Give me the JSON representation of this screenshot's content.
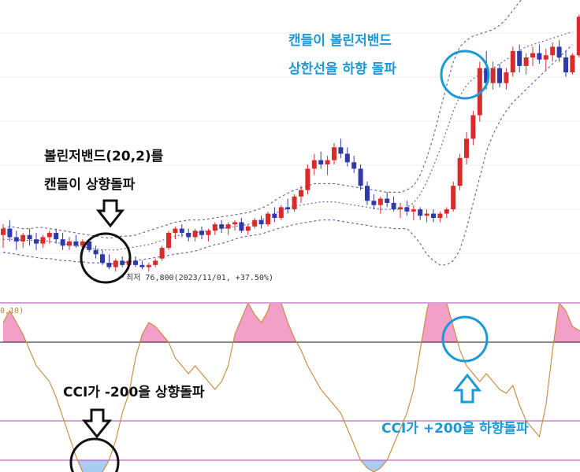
{
  "chart_data": [
    {
      "type": "candlestick",
      "overlay": "Bollinger Bands (20,2)",
      "colors": {
        "up": "#d62c2c",
        "down": "#2f3aa8",
        "band": "#6a6aaa"
      },
      "low_label": "최저 76,800(2023/11/01, +37.50%)",
      "candles": [
        {
          "o": 34,
          "h": 44,
          "l": 22,
          "c": 40
        },
        {
          "o": 40,
          "h": 48,
          "l": 28,
          "c": 32
        },
        {
          "o": 32,
          "h": 38,
          "l": 20,
          "c": 28
        },
        {
          "o": 28,
          "h": 36,
          "l": 22,
          "c": 34
        },
        {
          "o": 34,
          "h": 40,
          "l": 24,
          "c": 30
        },
        {
          "o": 30,
          "h": 36,
          "l": 20,
          "c": 26
        },
        {
          "o": 26,
          "h": 34,
          "l": 22,
          "c": 32
        },
        {
          "o": 32,
          "h": 38,
          "l": 26,
          "c": 36
        },
        {
          "o": 36,
          "h": 40,
          "l": 26,
          "c": 30
        },
        {
          "o": 30,
          "h": 36,
          "l": 20,
          "c": 24
        },
        {
          "o": 24,
          "h": 32,
          "l": 20,
          "c": 28
        },
        {
          "o": 28,
          "h": 34,
          "l": 22,
          "c": 24
        },
        {
          "o": 24,
          "h": 30,
          "l": 18,
          "c": 28
        },
        {
          "o": 28,
          "h": 30,
          "l": 18,
          "c": 20
        },
        {
          "o": 20,
          "h": 24,
          "l": 12,
          "c": 16
        },
        {
          "o": 16,
          "h": 20,
          "l": 6,
          "c": 8
        },
        {
          "o": 8,
          "h": 16,
          "l": 2,
          "c": 4
        },
        {
          "o": 4,
          "h": 12,
          "l": 0,
          "c": 10
        },
        {
          "o": 10,
          "h": 14,
          "l": 4,
          "c": 6
        },
        {
          "o": 6,
          "h": 12,
          "l": 2,
          "c": 10
        },
        {
          "o": 10,
          "h": 14,
          "l": 4,
          "c": 6
        },
        {
          "o": 6,
          "h": 10,
          "l": 2,
          "c": 4
        },
        {
          "o": 4,
          "h": 8,
          "l": 0,
          "c": 6
        },
        {
          "o": 6,
          "h": 12,
          "l": 4,
          "c": 10
        },
        {
          "o": 12,
          "h": 24,
          "l": 10,
          "c": 22
        },
        {
          "o": 22,
          "h": 38,
          "l": 20,
          "c": 36
        },
        {
          "o": 36,
          "h": 42,
          "l": 30,
          "c": 40
        },
        {
          "o": 40,
          "h": 44,
          "l": 32,
          "c": 36
        },
        {
          "o": 36,
          "h": 40,
          "l": 28,
          "c": 32
        },
        {
          "o": 32,
          "h": 40,
          "l": 28,
          "c": 38
        },
        {
          "o": 38,
          "h": 42,
          "l": 30,
          "c": 34
        },
        {
          "o": 34,
          "h": 40,
          "l": 28,
          "c": 38
        },
        {
          "o": 38,
          "h": 46,
          "l": 34,
          "c": 44
        },
        {
          "o": 44,
          "h": 48,
          "l": 36,
          "c": 40
        },
        {
          "o": 40,
          "h": 46,
          "l": 34,
          "c": 44
        },
        {
          "o": 44,
          "h": 48,
          "l": 38,
          "c": 46
        },
        {
          "o": 46,
          "h": 50,
          "l": 36,
          "c": 38
        },
        {
          "o": 38,
          "h": 44,
          "l": 34,
          "c": 42
        },
        {
          "o": 42,
          "h": 50,
          "l": 40,
          "c": 48
        },
        {
          "o": 48,
          "h": 52,
          "l": 40,
          "c": 44
        },
        {
          "o": 44,
          "h": 56,
          "l": 42,
          "c": 54
        },
        {
          "o": 54,
          "h": 60,
          "l": 46,
          "c": 50
        },
        {
          "o": 50,
          "h": 62,
          "l": 48,
          "c": 60
        },
        {
          "o": 60,
          "h": 68,
          "l": 54,
          "c": 58
        },
        {
          "o": 58,
          "h": 72,
          "l": 56,
          "c": 70
        },
        {
          "o": 70,
          "h": 80,
          "l": 64,
          "c": 76
        },
        {
          "o": 76,
          "h": 100,
          "l": 72,
          "c": 96
        },
        {
          "o": 96,
          "h": 110,
          "l": 90,
          "c": 104
        },
        {
          "o": 104,
          "h": 112,
          "l": 96,
          "c": 100
        },
        {
          "o": 100,
          "h": 108,
          "l": 90,
          "c": 104
        },
        {
          "o": 104,
          "h": 120,
          "l": 100,
          "c": 116
        },
        {
          "o": 116,
          "h": 124,
          "l": 106,
          "c": 110
        },
        {
          "o": 110,
          "h": 116,
          "l": 98,
          "c": 102
        },
        {
          "o": 102,
          "h": 108,
          "l": 92,
          "c": 96
        },
        {
          "o": 96,
          "h": 100,
          "l": 76,
          "c": 80
        },
        {
          "o": 80,
          "h": 84,
          "l": 62,
          "c": 66
        },
        {
          "o": 66,
          "h": 72,
          "l": 58,
          "c": 62
        },
        {
          "o": 62,
          "h": 70,
          "l": 54,
          "c": 68
        },
        {
          "o": 68,
          "h": 74,
          "l": 60,
          "c": 64
        },
        {
          "o": 64,
          "h": 70,
          "l": 56,
          "c": 58
        },
        {
          "o": 58,
          "h": 64,
          "l": 50,
          "c": 60
        },
        {
          "o": 60,
          "h": 66,
          "l": 52,
          "c": 56
        },
        {
          "o": 56,
          "h": 62,
          "l": 48,
          "c": 58
        },
        {
          "o": 58,
          "h": 60,
          "l": 48,
          "c": 52
        },
        {
          "o": 52,
          "h": 58,
          "l": 46,
          "c": 54
        },
        {
          "o": 54,
          "h": 58,
          "l": 46,
          "c": 50
        },
        {
          "o": 50,
          "h": 56,
          "l": 46,
          "c": 54
        },
        {
          "o": 54,
          "h": 60,
          "l": 50,
          "c": 58
        },
        {
          "o": 58,
          "h": 84,
          "l": 56,
          "c": 80
        },
        {
          "o": 80,
          "h": 110,
          "l": 76,
          "c": 106
        },
        {
          "o": 106,
          "h": 130,
          "l": 100,
          "c": 124
        },
        {
          "o": 124,
          "h": 150,
          "l": 118,
          "c": 146
        },
        {
          "o": 146,
          "h": 196,
          "l": 140,
          "c": 190
        },
        {
          "o": 190,
          "h": 206,
          "l": 170,
          "c": 176
        },
        {
          "o": 176,
          "h": 196,
          "l": 170,
          "c": 190
        },
        {
          "o": 190,
          "h": 194,
          "l": 172,
          "c": 176
        },
        {
          "o": 176,
          "h": 190,
          "l": 170,
          "c": 186
        },
        {
          "o": 186,
          "h": 210,
          "l": 182,
          "c": 206
        },
        {
          "o": 206,
          "h": 212,
          "l": 186,
          "c": 192
        },
        {
          "o": 192,
          "h": 204,
          "l": 184,
          "c": 200
        },
        {
          "o": 200,
          "h": 210,
          "l": 192,
          "c": 204
        },
        {
          "o": 204,
          "h": 212,
          "l": 194,
          "c": 198
        },
        {
          "o": 198,
          "h": 208,
          "l": 188,
          "c": 202
        },
        {
          "o": 202,
          "h": 214,
          "l": 196,
          "c": 210
        },
        {
          "o": 210,
          "h": 216,
          "l": 196,
          "c": 200
        },
        {
          "o": 200,
          "h": 206,
          "l": 182,
          "c": 186
        },
        {
          "o": 186,
          "h": 204,
          "l": 184,
          "c": 202
        },
        {
          "o": 202,
          "h": 240,
          "l": 200,
          "c": 238
        },
        {
          "o": 238,
          "h": 262,
          "l": 230,
          "c": 256
        },
        {
          "o": 256,
          "h": 266,
          "l": 238,
          "c": 242
        }
      ],
      "bollinger": {
        "upper": [
          40,
          42,
          41,
          40,
          40,
          41,
          41,
          40,
          39,
          38,
          37,
          36,
          35,
          34,
          33,
          32,
          31,
          32,
          33,
          33,
          34,
          36,
          38,
          40,
          42,
          44,
          46,
          47,
          48,
          48,
          48,
          49,
          50,
          51,
          52,
          53,
          54,
          55,
          57,
          59,
          62,
          66,
          70,
          73,
          76,
          78,
          80,
          82,
          82,
          82,
          82,
          81,
          80,
          79,
          78,
          77,
          76,
          75,
          74,
          74,
          74,
          76,
          80,
          90,
          106,
          126,
          150,
          174,
          196,
          210,
          216,
          220,
          222,
          224,
          226,
          230,
          236,
          244,
          252,
          258,
          262,
          266,
          270,
          274,
          278,
          282,
          286
        ],
        "middle": [
          30,
          30,
          30,
          29,
          29,
          29,
          29,
          28,
          27,
          26,
          25,
          24,
          23,
          22,
          21,
          20,
          20,
          20,
          21,
          22,
          23,
          24,
          25,
          27,
          29,
          31,
          33,
          34,
          35,
          36,
          37,
          38,
          39,
          40,
          41,
          42,
          43,
          44,
          46,
          48,
          51,
          54,
          57,
          59,
          61,
          62,
          63,
          64,
          65,
          65,
          65,
          64,
          63,
          62,
          61,
          60,
          59,
          58,
          58,
          58,
          58,
          60,
          64,
          72,
          84,
          98,
          114,
          132,
          150,
          164,
          174,
          180,
          184,
          188,
          190,
          194,
          198,
          202,
          206,
          210,
          212,
          214,
          216,
          218,
          220,
          222,
          224
        ],
        "lower": [
          18,
          17,
          16,
          15,
          14,
          13,
          12,
          12,
          11,
          10,
          10,
          9,
          9,
          8,
          8,
          8,
          7,
          7,
          8,
          9,
          10,
          11,
          12,
          13,
          14,
          15,
          16,
          17,
          18,
          19,
          21,
          23,
          25,
          26,
          28,
          30,
          32,
          33,
          34,
          35,
          37,
          39,
          41,
          42,
          44,
          45,
          46,
          47,
          48,
          48,
          48,
          47,
          46,
          45,
          44,
          43,
          42,
          41,
          41,
          40,
          40,
          40,
          34,
          26,
          16,
          10,
          6,
          6,
          10,
          20,
          40,
          64,
          88,
          112,
          128,
          140,
          150,
          158,
          164,
          170,
          176,
          182,
          188,
          194,
          200,
          206,
          212
        ]
      }
    },
    {
      "type": "line",
      "indicator": "CCI",
      "header": "0,10)",
      "ylim": [
        -260,
        260
      ],
      "reference_lines": [
        {
          "value": 100,
          "color": "#111111"
        },
        {
          "value": 200,
          "color": "#b640b6"
        },
        {
          "value": -200,
          "color": "#b640b6"
        },
        {
          "value": -100,
          "color": "#b640b6"
        }
      ],
      "fill_above": 100,
      "fill_below": -200,
      "colors": {
        "line": "#c8883a",
        "fill_above": "#f2a0c8",
        "fill_below": "#a8ccf2"
      },
      "values": [
        150,
        180,
        150,
        120,
        80,
        40,
        20,
        0,
        -40,
        -90,
        -140,
        -190,
        -230,
        -260,
        -250,
        -230,
        -200,
        -150,
        -80,
        -30,
        60,
        120,
        150,
        140,
        120,
        100,
        60,
        40,
        20,
        40,
        20,
        0,
        -20,
        0,
        40,
        120,
        160,
        200,
        170,
        150,
        180,
        240,
        200,
        150,
        110,
        80,
        40,
        10,
        -20,
        -40,
        -60,
        -80,
        -120,
        -160,
        -200,
        -220,
        -230,
        -220,
        -200,
        -160,
        -120,
        -80,
        -20,
        80,
        180,
        250,
        230,
        200,
        140,
        80,
        40,
        20,
        0,
        20,
        0,
        -20,
        -30,
        -10,
        -60,
        -100,
        -120,
        -140,
        -60,
        80,
        200,
        180,
        140,
        130,
        120,
        130
      ]
    }
  ],
  "annotations": {
    "left_upper": {
      "line1": "볼린저밴드(20,2)를",
      "line2": "캔들이 상향돌파"
    },
    "right_upper": {
      "line1": "캔들이 볼린저밴드",
      "line2": "상한선을 하향 돌파"
    },
    "left_lower": "CCI가 -200을 상향돌파",
    "right_lower": "CCI가 +200을 하향돌파"
  }
}
